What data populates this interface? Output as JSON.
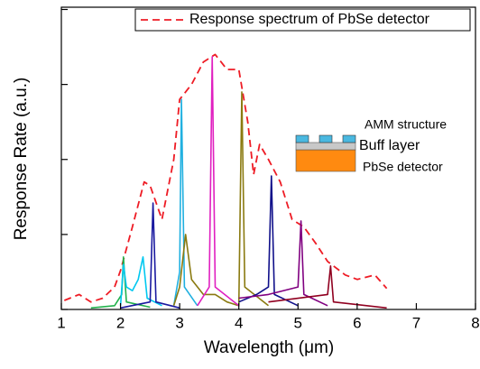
{
  "chart_data": {
    "type": "line",
    "xlabel": "Wavelength (μm)",
    "ylabel": "Response Rate (a.u.)",
    "xlim": [
      1,
      8
    ],
    "ylim": [
      0,
      4.03
    ],
    "xticks": [
      1,
      2,
      3,
      4,
      5,
      6,
      7,
      8
    ],
    "yticks": [
      0,
      1,
      2,
      3,
      4
    ],
    "legend_position": "upper right",
    "annotations": [
      "AMM structure",
      "Buff layer",
      "PbSe detector"
    ],
    "series": [
      {
        "name": "Response spectrum of PbSe detector",
        "color": "#ee1c25",
        "dashed": true,
        "x": [
          1.05,
          1.3,
          1.5,
          1.7,
          1.9,
          2.0,
          2.2,
          2.4,
          2.5,
          2.7,
          2.9,
          3.0,
          3.2,
          3.4,
          3.6,
          3.8,
          4.0,
          4.15,
          4.25,
          4.35,
          4.5,
          4.7,
          4.9,
          5.1,
          5.3,
          5.5,
          5.8,
          6.0,
          6.3,
          6.5
        ],
        "values": [
          0.12,
          0.2,
          0.1,
          0.15,
          0.3,
          0.52,
          1.1,
          1.7,
          1.65,
          1.2,
          2.0,
          2.8,
          3.0,
          3.3,
          3.4,
          3.2,
          3.2,
          2.5,
          1.8,
          2.2,
          2.0,
          1.7,
          1.2,
          1.1,
          0.88,
          0.64,
          0.46,
          0.4,
          0.46,
          0.28
        ]
      },
      {
        "color": "#22b14c",
        "x": [
          1.5,
          1.9,
          2.02,
          2.05,
          2.1,
          2.5
        ],
        "values": [
          0.02,
          0.05,
          0.2,
          0.7,
          0.1,
          0.03
        ]
      },
      {
        "color": "#00c8f0",
        "x": [
          2.0,
          2.05,
          2.1,
          2.2,
          2.3,
          2.38,
          2.45,
          2.7
        ],
        "values": [
          0.05,
          0.6,
          0.3,
          0.25,
          0.4,
          0.7,
          0.15,
          0.05
        ]
      },
      {
        "color": "#1a1aa0",
        "x": [
          2.0,
          2.5,
          2.55,
          2.6,
          3.0
        ],
        "values": [
          0.02,
          0.1,
          1.42,
          0.1,
          0.02
        ]
      },
      {
        "color": "#20b0e0",
        "x": [
          2.9,
          3.0,
          3.03,
          3.08,
          3.3
        ],
        "values": [
          0.05,
          0.5,
          2.8,
          0.3,
          0.05
        ]
      },
      {
        "color": "#8a7a10",
        "x": [
          2.9,
          3.0,
          3.1,
          3.2,
          3.4,
          3.6,
          3.8,
          4.0,
          4.05,
          4.1,
          4.5
        ],
        "values": [
          0.05,
          0.3,
          1.0,
          0.4,
          0.2,
          0.2,
          0.1,
          0.05,
          2.9,
          0.3,
          0.05
        ]
      },
      {
        "color": "#e020c0",
        "x": [
          3.3,
          3.5,
          3.55,
          3.6,
          4.0
        ],
        "values": [
          0.05,
          0.3,
          3.37,
          0.3,
          0.05
        ]
      },
      {
        "color": "#10108a",
        "x": [
          4.0,
          4.3,
          4.5,
          4.55,
          4.6,
          5.0
        ],
        "values": [
          0.1,
          0.2,
          0.3,
          1.78,
          0.2,
          0.05
        ]
      },
      {
        "color": "#800080",
        "x": [
          4.0,
          4.5,
          5.0,
          5.05,
          5.1,
          5.5
        ],
        "values": [
          0.15,
          0.2,
          0.3,
          1.18,
          0.2,
          0.05
        ]
      },
      {
        "color": "#900020",
        "x": [
          4.5,
          5.5,
          5.55,
          5.6,
          6.5
        ],
        "values": [
          0.1,
          0.2,
          0.58,
          0.1,
          0.02
        ]
      }
    ]
  }
}
